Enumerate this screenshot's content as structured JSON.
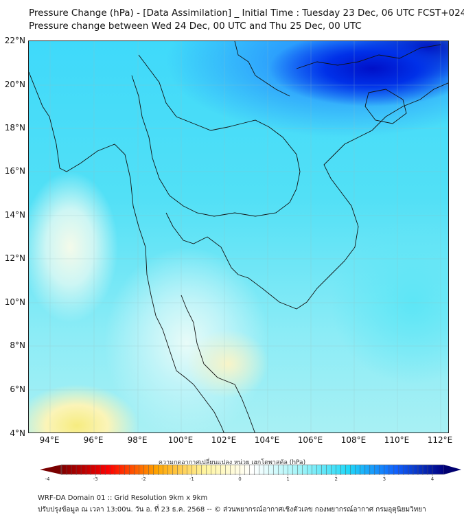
{
  "title": {
    "line1": "Pressure Change (hPa) - [Data Assimilation] _ Initial Time : Tuesday 23 Dec, 06 UTC FCST+024",
    "line2": "Pressure change between Wed 24 Dec, 00 UTC and Thu 25 Dec, 00 UTC"
  },
  "map": {
    "lat_labels": [
      "22°N",
      "20°N",
      "18°N",
      "16°N",
      "14°N",
      "12°N",
      "10°N",
      "8°N",
      "6°N",
      "4°N"
    ],
    "lon_labels": [
      "94°E",
      "96°E",
      "98°E",
      "100°E",
      "102°E",
      "104°E",
      "106°E",
      "108°E",
      "110°E",
      "112°E"
    ]
  },
  "colorbar": {
    "title": "ความกดอากาศเปลี่ยนแปลง หน่วย เฮกโตพาสคัล (hPa)",
    "ticks": [
      "-4",
      "-3",
      "-2",
      "-1",
      "0",
      "1",
      "2",
      "3",
      "4"
    ],
    "range": [
      -4,
      4
    ],
    "colors": [
      "#800000",
      "#ff0000",
      "#ffa500",
      "#fff5a0",
      "#ffffff",
      "#a0f4f8",
      "#20d8f8",
      "#1060ff",
      "#000080"
    ]
  },
  "footer": {
    "line1": "WRF-DA Domain 01 :: Grid Resolution 9km x 9km",
    "line2": "ปรับปรุงข้อมูล ณ เวลา 13:00น. วัน อ. ที่ 23 ธ.ค. 2568 -- © ส่วนพยากรณ์อากาศเชิงตัวเลข กองพยากรณ์อากาศ กรมอุตุนิยมวิทยา"
  }
}
